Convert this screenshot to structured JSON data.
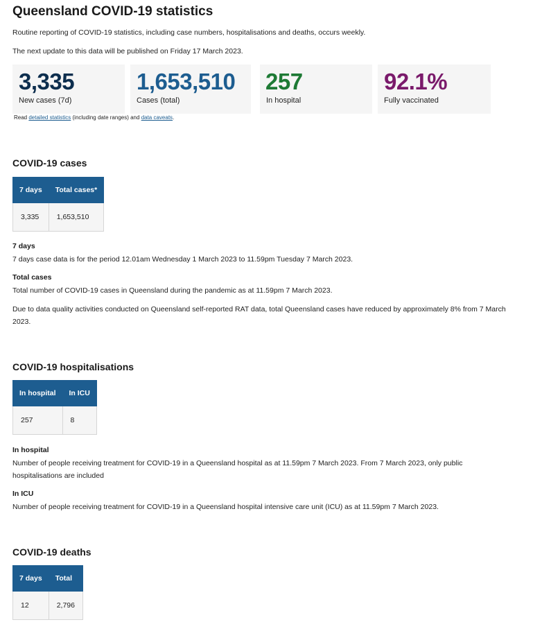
{
  "page": {
    "title": "Queensland COVID-19 statistics",
    "intro": "Routine reporting of COVID-19 statistics, including case numbers, hospitalisations and deaths, occurs weekly.",
    "next_update": "The next update to this data will be published on Friday 17 March 2023."
  },
  "stats": [
    {
      "value": "3,335",
      "label": "New cases (7d)",
      "color": "#0d2e4e"
    },
    {
      "value": "1,653,510",
      "label": "Cases (total)",
      "color": "#1d5d90"
    },
    {
      "value": "257",
      "label": "In hospital",
      "color": "#1e7a35"
    },
    {
      "value": "92.1%",
      "label": "Fully vaccinated",
      "color": "#7a1a6b"
    }
  ],
  "read_note": {
    "prefix": "Read ",
    "detailed_link": "detailed statistics",
    "middle": " (including date ranges) and ",
    "caveats_link": "data caveats",
    "suffix": "."
  },
  "cases": {
    "heading": "COVID-19 cases",
    "headers": [
      "7 days",
      "Total cases*"
    ],
    "values": [
      "3,335",
      "1,653,510"
    ],
    "term_7days": "7 days",
    "desc_7days": "7 days case data is for the period 12.01am Wednesday 1 March 2023 to 11.59pm Tuesday 7 March 2023.",
    "term_total": "Total cases",
    "desc_total": "Total number of COVID-19 cases in Queensland during the pandemic as at 11.59pm 7 March 2023.",
    "note": "Due to data quality activities conducted on Queensland self-reported RAT data, total Queensland cases have reduced by approximately 8% from 7 March 2023."
  },
  "hospitalisations": {
    "heading": "COVID-19 hospitalisations",
    "headers": [
      "In hospital",
      "In ICU"
    ],
    "values": [
      "257",
      "8"
    ],
    "term_hospital": "In hospital",
    "desc_hospital": "Number of people receiving treatment for COVID-19 in a Queensland hospital as at 11.59pm 7 March 2023. From 7 March 2023, only public hospitalisations are included",
    "term_icu": "In ICU",
    "desc_icu": "Number of people receiving treatment for COVID-19 in a Queensland hospital intensive care unit (ICU) as at 11.59pm 7 March 2023."
  },
  "deaths": {
    "heading": "COVID-19 deaths",
    "headers": [
      "7 days",
      "Total"
    ],
    "values": [
      "12",
      "2,796"
    ]
  }
}
